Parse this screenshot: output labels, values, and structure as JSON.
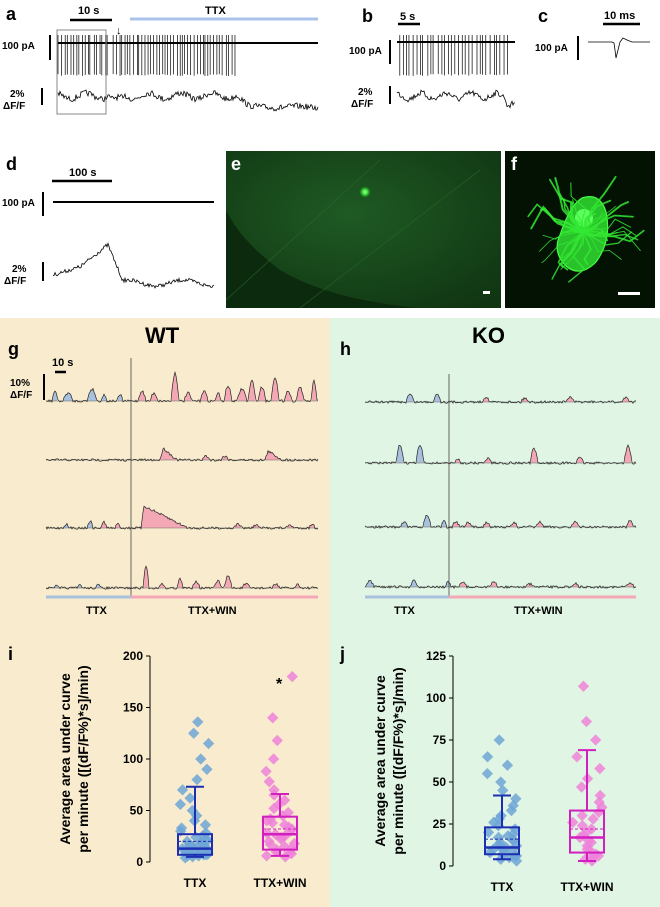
{
  "panels": {
    "a": {
      "letter": "a",
      "scale_time": "10 s",
      "scale_current": "100 pA",
      "scale_dff_1": "2%",
      "scale_dff_2": "ΔF/F",
      "condition": "TTX"
    },
    "b": {
      "letter": "b",
      "scale_time": "5 s",
      "scale_current": "100 pA",
      "scale_dff_1": "2%",
      "scale_dff_2": "ΔF/F"
    },
    "c": {
      "letter": "c",
      "scale_time": "10 ms",
      "scale_current": "100 pA"
    },
    "d": {
      "letter": "d",
      "scale_time": "100 s",
      "scale_current": "100 pA",
      "scale_dff_1": "2%",
      "scale_dff_2": "ΔF/F"
    },
    "e": {
      "letter": "e"
    },
    "f": {
      "letter": "f"
    },
    "g": {
      "letter": "g",
      "group": "WT",
      "scale_time": "10 s",
      "scale_dff_1": "10%",
      "scale_dff_2": "ΔF/F",
      "cond1": "TTX",
      "cond2": "TTX+WIN"
    },
    "h": {
      "letter": "h",
      "group": "KO",
      "cond1": "TTX",
      "cond2": "TTX+WIN"
    },
    "i": {
      "letter": "i",
      "significance": "*"
    },
    "j": {
      "letter": "j"
    }
  },
  "colors": {
    "wt_bg": "#f9ecce",
    "ko_bg": "#e0f5e3",
    "ttx": "#6ea6d6",
    "win": "#ee82d9",
    "ttx_box": "#1d2fb2",
    "win_box": "#d21fc0",
    "fluor": "#22cc22",
    "trace_fill_ttx": "#a7c1de",
    "trace_fill_win": "#f4a8b6"
  },
  "chart_data": [
    {
      "type": "box",
      "panel": "i",
      "ylabel_line1": "Average area under curve",
      "ylabel_line2": "per minute ([(dF/F%)*s]/min)",
      "ylim": [
        0,
        200
      ],
      "yticks": [
        "0",
        "50",
        "100",
        "150",
        "200"
      ],
      "categories": [
        "TTX",
        "TTX+WIN"
      ],
      "series": [
        {
          "name": "TTX",
          "whisker_low": 5,
          "q1": 7,
          "median": 13,
          "mean": 20,
          "q3": 27,
          "whisker_high": 73,
          "points": [
            4,
            5,
            6,
            6,
            7,
            7,
            8,
            8,
            9,
            9,
            10,
            10,
            11,
            11,
            12,
            12,
            13,
            13,
            14,
            15,
            15,
            16,
            17,
            18,
            19,
            20,
            21,
            22,
            24,
            26,
            28,
            30,
            33,
            36,
            40,
            45,
            50,
            56,
            62,
            70,
            80,
            90,
            100,
            115,
            125,
            136
          ]
        },
        {
          "name": "TTX+WIN",
          "whisker_low": 6,
          "q1": 12,
          "median": 27,
          "mean": 32,
          "q3": 44,
          "whisker_high": 66,
          "points": [
            5,
            6,
            8,
            9,
            10,
            12,
            13,
            15,
            17,
            18,
            20,
            22,
            24,
            25,
            27,
            28,
            30,
            32,
            34,
            36,
            38,
            40,
            42,
            45,
            48,
            52,
            56,
            60,
            65,
            70,
            78,
            88,
            100,
            118,
            140,
            180
          ]
        }
      ]
    },
    {
      "type": "box",
      "panel": "j",
      "ylabel_line1": "Average area under curve",
      "ylabel_line2": "per minute ([(dF/F%)*s]/min)",
      "ylim": [
        0,
        125
      ],
      "yticks": [
        "0",
        "25",
        "50",
        "75",
        "100",
        "125"
      ],
      "categories": [
        "TTX",
        "TTX+WIN"
      ],
      "series": [
        {
          "name": "TTX",
          "whisker_low": 4,
          "q1": 7,
          "median": 11,
          "mean": 16,
          "q3": 23,
          "whisker_high": 42,
          "points": [
            3,
            4,
            5,
            6,
            6,
            7,
            8,
            9,
            10,
            10,
            11,
            12,
            12,
            13,
            14,
            15,
            16,
            17,
            18,
            19,
            20,
            22,
            24,
            26,
            28,
            30,
            33,
            36,
            40,
            45,
            50,
            55,
            60,
            65,
            75
          ]
        },
        {
          "name": "TTX+WIN",
          "whisker_low": 3,
          "q1": 8,
          "median": 17,
          "mean": 22,
          "q3": 33,
          "whisker_high": 69,
          "points": [
            3,
            4,
            5,
            6,
            7,
            8,
            10,
            12,
            14,
            15,
            17,
            18,
            20,
            22,
            24,
            26,
            28,
            30,
            32,
            35,
            38,
            42,
            47,
            52,
            58,
            65,
            75,
            86,
            107
          ]
        }
      ]
    }
  ]
}
